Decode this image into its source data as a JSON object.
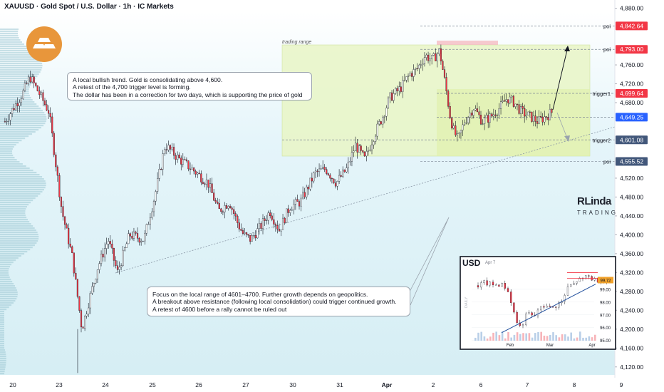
{
  "header": {
    "title": "XAUUSD · Gold Spot / U.S. Dollar · 1h · IC Markets"
  },
  "brand": {
    "line1": "RLinda",
    "line2": "TRADING"
  },
  "range_label": "trading range",
  "callouts": {
    "top": [
      "A local bullish trend. Gold is consolidating above 4,600.",
      "A retest of the 4,700 trigger level is forming.",
      "The dollar has been in a correction for two days, which is supporting the price of gold"
    ],
    "bottom": [
      "Focus on the local range of 4601–4700. Further growth depends on geopolitics.",
      "A breakout above resistance (following local consolidation) could trigger continued growth.",
      "A retest of 4600 before a rally cannot be ruled out"
    ]
  },
  "levels": [
    {
      "label": "poi",
      "value": 4842.64,
      "badge": "4,842.64",
      "color": "#f23645"
    },
    {
      "label": "poi",
      "value": 4793.0,
      "badge": "4,793.00",
      "color": "#f23645"
    },
    {
      "label": "trigger1",
      "value": 4699.64,
      "badge": "4,699.64",
      "color": "#f23645"
    },
    {
      "label": "",
      "value": 4649.25,
      "badge": "4,649.25",
      "color": "#2962ff"
    },
    {
      "label": "trigger2",
      "value": 4601.08,
      "badge": "4,601.08",
      "color": "#42577a"
    },
    {
      "label": "poi",
      "value": 4555.52,
      "badge": "4,555.52",
      "color": "#42577a"
    }
  ],
  "colors": {
    "up": "#ffffff",
    "down": "#f23645",
    "range": "#e9f6c6",
    "sky": "#e6f6fa",
    "accent": "#2962ff"
  },
  "chart_data": [
    {
      "type": "candlestick",
      "title": "XAUUSD · Gold Spot / U.S. Dollar · 1h · IC Markets",
      "y_ticks": [
        4880,
        4840,
        4800,
        4760,
        4720,
        4680,
        4640,
        4600,
        4560,
        4520,
        4480,
        4440,
        4400,
        4360,
        4320,
        4280,
        4240,
        4200,
        4160,
        4120
      ],
      "y_tick_labels": [
        "4,880.00",
        "",
        "",
        "4,760.00",
        "4,720.00",
        "4,680.00",
        "",
        "",
        "",
        "4,520.00",
        "4,480.00",
        "4,440.00",
        "4,400.00",
        "4,360.00",
        "4,320.00",
        "4,280.00",
        "4,240.00",
        "4,200.00",
        "4,160.00",
        "4,120.00"
      ],
      "ylim": [
        4097,
        4890
      ],
      "x_ticks": [
        "20",
        "23",
        "24",
        "25",
        "26",
        "27",
        "30",
        "31",
        "Apr",
        "2",
        "6",
        "7",
        "8",
        "9"
      ],
      "path": [
        [
          0,
          4640
        ],
        [
          25,
          4700
        ],
        [
          35,
          4735
        ],
        [
          48,
          4700
        ],
        [
          62,
          4660
        ],
        [
          80,
          4450
        ],
        [
          95,
          4350
        ],
        [
          108,
          4200
        ],
        [
          118,
          4260
        ],
        [
          130,
          4330
        ],
        [
          145,
          4390
        ],
        [
          158,
          4320
        ],
        [
          175,
          4400
        ],
        [
          195,
          4390
        ],
        [
          210,
          4480
        ],
        [
          225,
          4590
        ],
        [
          245,
          4560
        ],
        [
          262,
          4540
        ],
        [
          285,
          4510
        ],
        [
          300,
          4450
        ],
        [
          315,
          4470
        ],
        [
          328,
          4420
        ],
        [
          335,
          4400
        ],
        [
          345,
          4390
        ],
        [
          360,
          4420
        ],
        [
          372,
          4450
        ],
        [
          385,
          4410
        ],
        [
          400,
          4460
        ],
        [
          415,
          4470
        ],
        [
          425,
          4500
        ],
        [
          435,
          4530
        ],
        [
          450,
          4540
        ],
        [
          465,
          4510
        ],
        [
          480,
          4540
        ],
        [
          492,
          4590
        ],
        [
          505,
          4560
        ],
        [
          518,
          4610
        ],
        [
          530,
          4650
        ],
        [
          540,
          4690
        ],
        [
          555,
          4710
        ],
        [
          568,
          4740
        ],
        [
          578,
          4750
        ],
        [
          590,
          4780
        ],
        [
          600,
          4770
        ],
        [
          610,
          4790
        ],
        [
          618,
          4720
        ],
        [
          625,
          4650
        ],
        [
          630,
          4620
        ],
        [
          636,
          4600
        ],
        [
          645,
          4640
        ],
        [
          658,
          4670
        ],
        [
          670,
          4640
        ],
        [
          682,
          4650
        ],
        [
          695,
          4670
        ],
        [
          705,
          4690
        ],
        [
          715,
          4680
        ],
        [
          725,
          4660
        ],
        [
          738,
          4650
        ],
        [
          748,
          4640
        ],
        [
          758,
          4650
        ],
        [
          768,
          4660
        ]
      ],
      "candle_x_start": 6,
      "candle_spacing": 2.55
    },
    {
      "type": "candlestick",
      "title": "USD",
      "subtitle": "Apr 7",
      "y_ticks": [
        99.0,
        98.0,
        97.0,
        96.0,
        95.0
      ],
      "y_tick_labels": [
        "99.00",
        "98.00",
        "97.00",
        "96.00",
        "95.00"
      ],
      "last_value": "99.72",
      "x_ticks": [
        "Feb",
        "Mar",
        "Apr"
      ],
      "side_label": "DAILY",
      "path": [
        [
          0,
          99.3
        ],
        [
          10,
          99.5
        ],
        [
          20,
          99.3
        ],
        [
          30,
          99.4
        ],
        [
          38,
          99.2
        ],
        [
          44,
          98.6
        ],
        [
          50,
          97.2
        ],
        [
          56,
          96.2
        ],
        [
          60,
          96.0
        ],
        [
          66,
          96.8
        ],
        [
          72,
          97.1
        ],
        [
          78,
          96.7
        ],
        [
          84,
          97.4
        ],
        [
          90,
          97.5
        ],
        [
          96,
          97.9
        ],
        [
          102,
          97.4
        ],
        [
          110,
          97.8
        ],
        [
          118,
          98.0
        ],
        [
          124,
          98.8
        ],
        [
          128,
          99.4
        ],
        [
          132,
          99.2
        ],
        [
          140,
          99.8
        ],
        [
          146,
          99.6
        ],
        [
          152,
          100.1
        ],
        [
          158,
          99.9
        ],
        [
          164,
          99.7
        ],
        [
          170,
          99.8
        ],
        [
          176,
          99.6
        ],
        [
          182,
          99.7
        ]
      ],
      "candle_x_start": 4,
      "candle_spacing": 4.2
    }
  ]
}
